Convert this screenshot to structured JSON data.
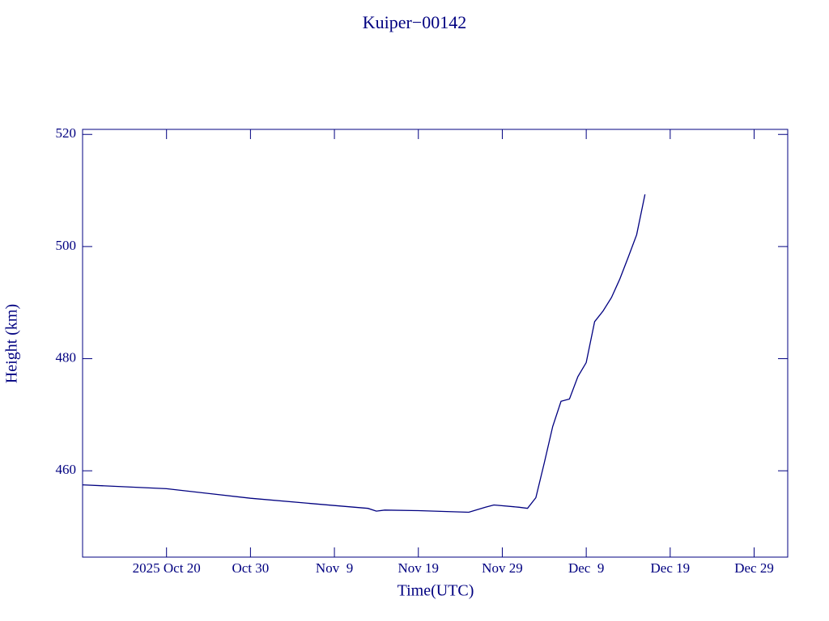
{
  "chart_data": {
    "type": "line",
    "title": "Kuiper−00142",
    "xlabel": "Time(UTC)",
    "ylabel": "Height (km)",
    "color": "#000080",
    "x": [
      "2025-10-10",
      "2025-10-20",
      "2025-10-30",
      "2025-11-09",
      "2025-11-13",
      "2025-11-14",
      "2025-11-15",
      "2025-11-19",
      "2025-11-25",
      "2025-11-27",
      "2025-11-28",
      "2025-12-01",
      "2025-12-02",
      "2025-12-03",
      "2025-12-04",
      "2025-12-05",
      "2025-12-06",
      "2025-12-07",
      "2025-12-08",
      "2025-12-09",
      "2025-12-10",
      "2025-12-11",
      "2025-12-12",
      "2025-12-13",
      "2025-12-14",
      "2025-12-15",
      "2025-12-16"
    ],
    "values": [
      457.5,
      456.8,
      455.1,
      453.8,
      453.3,
      452.8,
      453.0,
      452.9,
      452.6,
      453.5,
      453.9,
      453.5,
      453.3,
      455.2,
      461.4,
      467.9,
      472.4,
      472.8,
      476.8,
      479.3,
      486.6,
      488.5,
      490.9,
      494.2,
      498.1,
      502.1,
      509.3
    ],
    "xlim": [
      "2025-10-10",
      "2026-01-02"
    ],
    "xticks": [
      {
        "value": "2025-10-20",
        "label": "2025 Oct 20"
      },
      {
        "value": "2025-10-30",
        "label": "Oct 30"
      },
      {
        "value": "2025-11-09",
        "label": "Nov  9"
      },
      {
        "value": "2025-11-19",
        "label": "Nov 19"
      },
      {
        "value": "2025-11-29",
        "label": "Nov 29"
      },
      {
        "value": "2025-12-09",
        "label": "Dec  9"
      },
      {
        "value": "2025-12-19",
        "label": "Dec 19"
      },
      {
        "value": "2025-12-29",
        "label": "Dec 29"
      }
    ],
    "ylim": [
      444.6,
      520.9
    ],
    "yticks": [
      460,
      480,
      500,
      520
    ]
  }
}
